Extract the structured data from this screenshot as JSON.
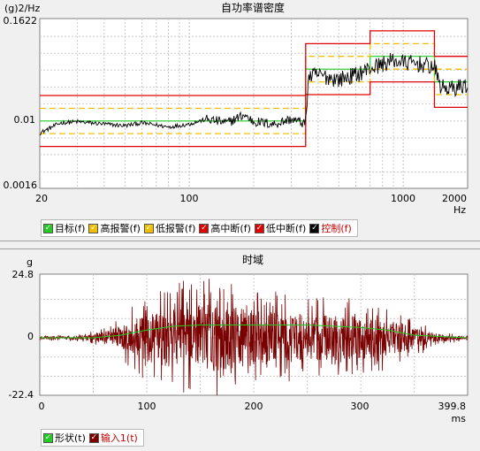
{
  "psd": {
    "title": "自功率谱密度",
    "y_unit": "(g)2/Hz",
    "x_unit": "Hz",
    "y_ticks": [
      "0.1622",
      "0.01",
      "0.0016"
    ],
    "x_ticks": [
      "20",
      "100",
      "1000",
      "2000"
    ],
    "legend": [
      {
        "label": "目标(f)",
        "color": "#22cc22",
        "text_color": "#000000"
      },
      {
        "label": "高报警(f)",
        "color": "#f0c000",
        "text_color": "#000000"
      },
      {
        "label": "低报警(f)",
        "color": "#f0c000",
        "text_color": "#000000"
      },
      {
        "label": "高中断(f)",
        "color": "#e00000",
        "text_color": "#000000"
      },
      {
        "label": "低中断(f)",
        "color": "#e00000",
        "text_color": "#000000"
      },
      {
        "label": "控制(f)",
        "color": "#000000",
        "text_color": "#cc0000"
      }
    ]
  },
  "time": {
    "title": "时域",
    "y_unit": "g",
    "x_unit": "ms",
    "y_ticks": [
      "24.8",
      "0",
      "-22.4"
    ],
    "x_ticks": [
      "0",
      "100",
      "200",
      "300",
      "399.8"
    ],
    "legend": [
      {
        "label": "形状(t)",
        "color": "#22cc22",
        "text_color": "#000000"
      },
      {
        "label": "输入1(t)",
        "color": "#7a0000",
        "text_color": "#cc0000"
      }
    ]
  },
  "chart_data": [
    {
      "type": "line",
      "title": "自功率谱密度",
      "xlabel": "Hz",
      "ylabel": "(g)2/Hz",
      "x_scale": "log",
      "y_scale": "log",
      "xlim": [
        20,
        2000
      ],
      "ylim": [
        0.0016,
        0.1622
      ],
      "grid": true,
      "legend_position": "bottom",
      "series": [
        {
          "name": "目标(f)",
          "points": [
            [
              20,
              0.01
            ],
            [
              350,
              0.01
            ],
            [
              350,
              0.041
            ],
            [
              700,
              0.041
            ],
            [
              700,
              0.058
            ],
            [
              1400,
              0.058
            ],
            [
              1400,
              0.029
            ],
            [
              2000,
              0.029
            ]
          ]
        },
        {
          "name": "高报警(f)",
          "points": [
            [
              20,
              0.0141
            ],
            [
              350,
              0.0141
            ],
            [
              350,
              0.058
            ],
            [
              700,
              0.058
            ],
            [
              700,
              0.082
            ],
            [
              1400,
              0.082
            ],
            [
              1400,
              0.041
            ],
            [
              2000,
              0.041
            ]
          ]
        },
        {
          "name": "低报警(f)",
          "points": [
            [
              20,
              0.0071
            ],
            [
              350,
              0.0071
            ],
            [
              350,
              0.029
            ],
            [
              700,
              0.029
            ],
            [
              700,
              0.041
            ],
            [
              1400,
              0.041
            ],
            [
              1400,
              0.0205
            ],
            [
              2000,
              0.0205
            ]
          ]
        },
        {
          "name": "高中断(f)",
          "points": [
            [
              20,
              0.02
            ],
            [
              350,
              0.02
            ],
            [
              350,
              0.082
            ],
            [
              700,
              0.082
            ],
            [
              700,
              0.116
            ],
            [
              1400,
              0.116
            ],
            [
              1400,
              0.058
            ],
            [
              2000,
              0.058
            ]
          ]
        },
        {
          "name": "低中断(f)",
          "points": [
            [
              20,
              0.005
            ],
            [
              350,
              0.005
            ],
            [
              350,
              0.0205
            ],
            [
              700,
              0.0205
            ],
            [
              700,
              0.029
            ],
            [
              1400,
              0.029
            ],
            [
              1400,
              0.0145
            ],
            [
              2000,
              0.0145
            ]
          ]
        },
        {
          "name": "控制(f)",
          "points": [
            [
              20,
              0.0072
            ],
            [
              25,
              0.0095
            ],
            [
              30,
              0.0098
            ],
            [
              40,
              0.0092
            ],
            [
              50,
              0.0088
            ],
            [
              60,
              0.0095
            ],
            [
              80,
              0.0085
            ],
            [
              100,
              0.0092
            ],
            [
              120,
              0.0105
            ],
            [
              150,
              0.0095
            ],
            [
              180,
              0.0118
            ],
            [
              200,
              0.0098
            ],
            [
              250,
              0.0092
            ],
            [
              300,
              0.0105
            ],
            [
              340,
              0.0095
            ],
            [
              350,
              0.0095
            ],
            [
              360,
              0.033
            ],
            [
              400,
              0.035
            ],
            [
              500,
              0.031
            ],
            [
              600,
              0.035
            ],
            [
              700,
              0.042
            ],
            [
              800,
              0.047
            ],
            [
              900,
              0.052
            ],
            [
              1000,
              0.049
            ],
            [
              1200,
              0.047
            ],
            [
              1400,
              0.043
            ],
            [
              1500,
              0.025
            ],
            [
              1700,
              0.024
            ],
            [
              2000,
              0.027
            ]
          ]
        }
      ]
    },
    {
      "type": "line",
      "title": "时域",
      "xlabel": "ms",
      "ylabel": "g",
      "xlim": [
        0,
        399.8
      ],
      "ylim": [
        -22.4,
        24.8
      ],
      "grid": true,
      "legend_position": "bottom",
      "series": [
        {
          "name": "形状(t)",
          "x": [
            0,
            50,
            75,
            100,
            125,
            150,
            200,
            250,
            275,
            300,
            325,
            350,
            399.8
          ],
          "y": [
            0,
            0,
            1,
            3,
            4.5,
            5,
            5,
            5,
            4.5,
            4,
            3,
            1,
            0
          ]
        },
        {
          "name": "输入1(t)",
          "envelope_x": [
            0,
            40,
            60,
            80,
            100,
            130,
            160,
            200,
            240,
            280,
            320,
            350,
            370,
            399.8
          ],
          "envelope_peak": [
            1,
            1.5,
            4,
            10,
            17,
            22,
            24,
            20,
            17,
            16,
            14,
            8,
            3,
            1
          ]
        }
      ]
    }
  ]
}
